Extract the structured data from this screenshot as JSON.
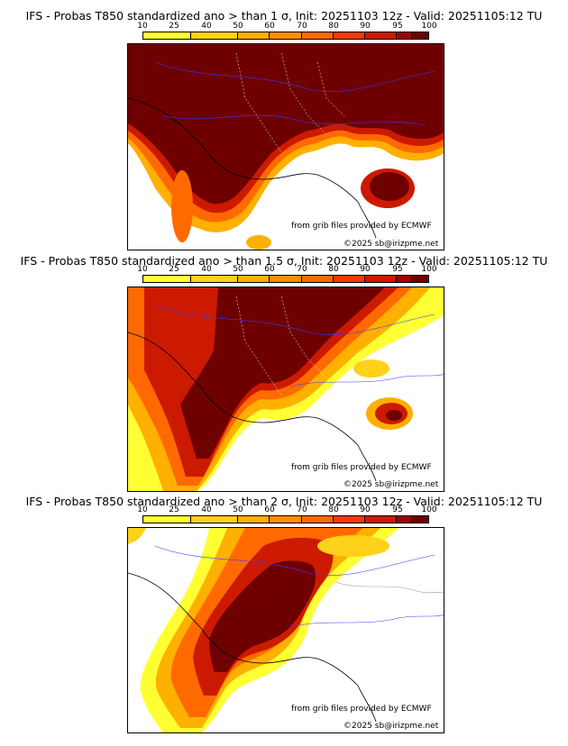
{
  "panels": [
    {
      "title": "IFS - Probas T850  standardized ano > than 1 σ, Init: 20251103 12z - Valid: 20251105:12 TU",
      "scale_ticks": [
        "10",
        "25",
        "40",
        "50",
        "60",
        "70",
        "80",
        "90",
        "95",
        "100"
      ],
      "credit_source": "from grib files provided by ECMWF",
      "credit_copyright": "©2025 sb@irizpme.net"
    },
    {
      "title": "IFS - Probas T850  standardized ano > than 1.5 σ, Init: 20251103 12z - Valid: 20251105:12 TU",
      "scale_ticks": [
        "10",
        "25",
        "40",
        "50",
        "60",
        "70",
        "80",
        "90",
        "95",
        "100"
      ],
      "credit_source": "from grib files provided by ECMWF",
      "credit_copyright": "©2025 sb@irizpme.net"
    },
    {
      "title": "IFS - Probas T850  standardized ano > than 2 σ, Init: 20251103 12z - Valid: 20251105:12 TU",
      "scale_ticks": [
        "10",
        "25",
        "40",
        "50",
        "60",
        "70",
        "80",
        "90",
        "95",
        "100"
      ],
      "credit_source": "from grib files provided by ECMWF",
      "credit_copyright": "©2025 sb@irizpme.net"
    }
  ],
  "scale_colors": [
    "#ffff33",
    "#ffd11a",
    "#ffb000",
    "#ff8f00",
    "#ff6a00",
    "#f03c00",
    "#cc1a00",
    "#a30000",
    "#6e0000"
  ]
}
